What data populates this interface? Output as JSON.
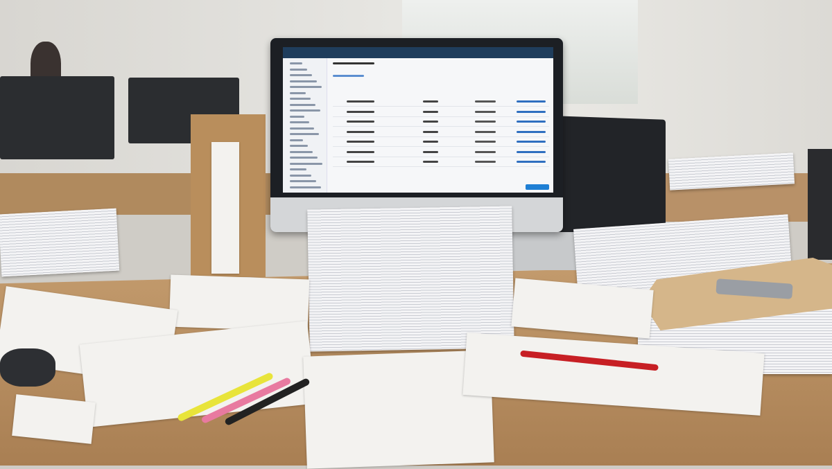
{
  "scene": {
    "description_colors": {
      "desk": "#b8905f",
      "screen_topbar": "#1f3d5c",
      "screen_accent": "#1f7fd4",
      "pen": "#c71f24",
      "marker_yellow": "#e8e43a",
      "marker_pink": "#e87aa0",
      "marker_black": "#222222"
    },
    "screen_rows": 7
  }
}
